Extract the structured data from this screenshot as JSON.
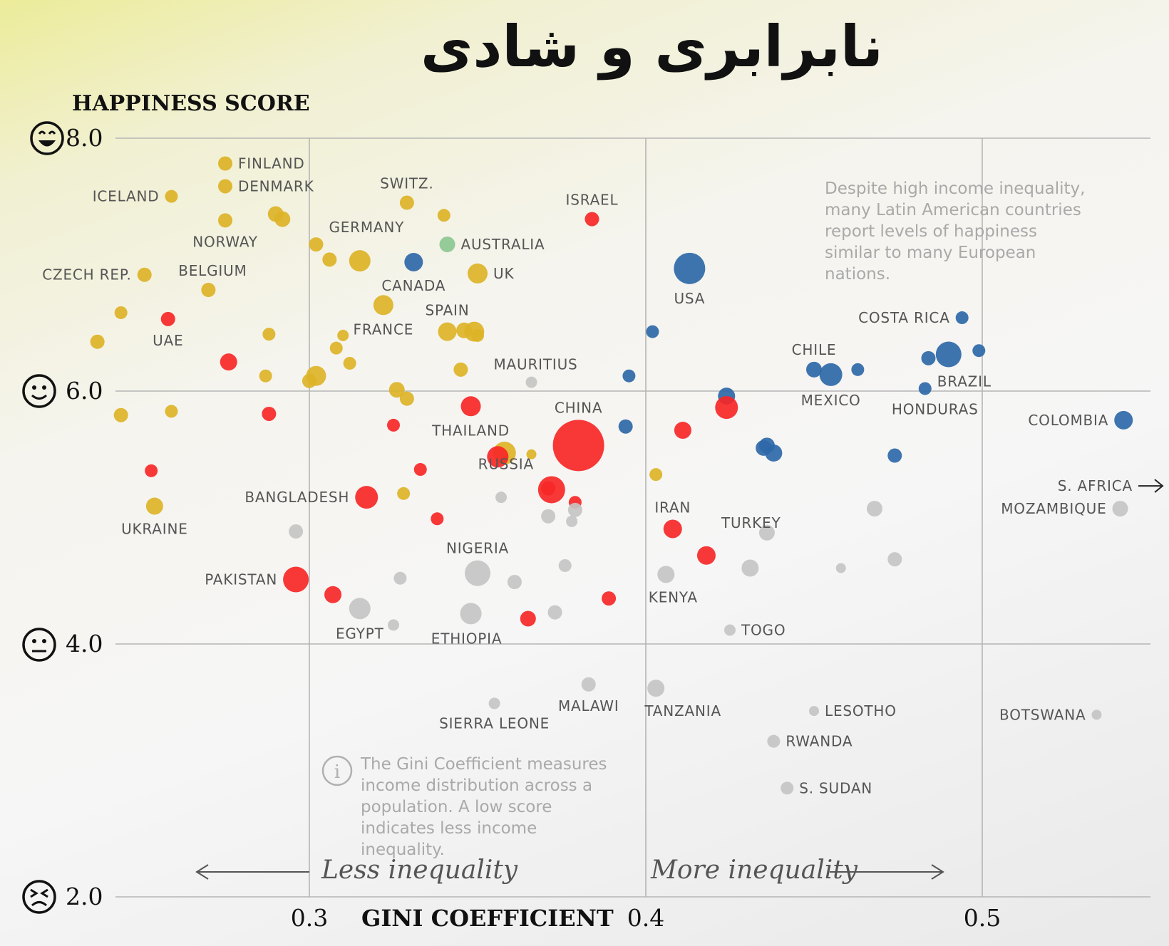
{
  "title": "نابرابری و شادی",
  "chart_data": {
    "type": "scatter",
    "title": "نابرابری و شادی",
    "ylabel": "HAPPINESS SCORE",
    "xlabel": "GINI COEFFICIENT",
    "xlim": [
      0.243,
      0.55
    ],
    "ylim": [
      2.0,
      8.0
    ],
    "x_ticks": [
      {
        "value": 0.3,
        "label": "0.3"
      },
      {
        "value": 0.4,
        "label": "0.4"
      },
      {
        "value": 0.5,
        "label": "0.5"
      }
    ],
    "y_ticks": [
      {
        "value": 8,
        "label": "8.0"
      },
      {
        "value": 6,
        "label": "6.0"
      },
      {
        "value": 4,
        "label": "4.0"
      },
      {
        "value": 2,
        "label": "2.0"
      }
    ],
    "grid": true,
    "direction_labels": {
      "less": "Less inequality",
      "more": "More inequality"
    },
    "annotations": {
      "latin_america": "Despite high income inequality, many Latin American countries report levels of happiness similar to many European nations.",
      "gini_info": "The Gini Coefficient measures income distribution across a population. A low score indicates less income inequality."
    },
    "colors": {
      "europe": "#dcb327",
      "asia": "#f62727",
      "americas": "#2e68a8",
      "africa": "#c4c4c4",
      "oceania": "#8cc890"
    },
    "points": [
      {
        "label": "FINLAND",
        "x": 0.275,
        "y": 7.8,
        "group": "europe",
        "size": 1
      },
      {
        "label": "DENMARK",
        "x": 0.275,
        "y": 7.62,
        "group": "europe",
        "size": 1
      },
      {
        "label": "ICELAND",
        "x": 0.259,
        "y": 7.54,
        "group": "europe",
        "size": 0.9
      },
      {
        "label": "SWITZ.",
        "x": 0.329,
        "y": 7.49,
        "group": "europe",
        "size": 1
      },
      {
        "label": "NORWAY",
        "x": 0.275,
        "y": 7.35,
        "group": "europe",
        "size": 1
      },
      {
        "label": "",
        "x": 0.29,
        "y": 7.4,
        "group": "europe",
        "size": 1.1
      },
      {
        "label": "",
        "x": 0.292,
        "y": 7.36,
        "group": "europe",
        "size": 1.1
      },
      {
        "label": "",
        "x": 0.34,
        "y": 7.39,
        "group": "europe",
        "size": 0.9
      },
      {
        "label": "ISRAEL",
        "x": 0.384,
        "y": 7.36,
        "group": "asia",
        "size": 1
      },
      {
        "label": "GERMANY",
        "x": 0.302,
        "y": 7.16,
        "group": "europe",
        "size": 1
      },
      {
        "label": "",
        "x": 0.306,
        "y": 7.04,
        "group": "europe",
        "size": 1
      },
      {
        "label": "",
        "x": 0.315,
        "y": 7.03,
        "group": "europe",
        "size": 1.5
      },
      {
        "label": "AUSTRALIA",
        "x": 0.341,
        "y": 7.16,
        "group": "oceania",
        "size": 1.1
      },
      {
        "label": "CANADA",
        "x": 0.331,
        "y": 7.02,
        "group": "americas",
        "size": 1.3
      },
      {
        "label": "UK",
        "x": 0.35,
        "y": 6.93,
        "group": "europe",
        "size": 1.4
      },
      {
        "label": "CZECH REP.",
        "x": 0.251,
        "y": 6.92,
        "group": "europe",
        "size": 1
      },
      {
        "label": "BELGIUM",
        "x": 0.27,
        "y": 6.8,
        "group": "europe",
        "size": 1
      },
      {
        "label": "USA",
        "x": 0.413,
        "y": 6.97,
        "group": "americas",
        "size": 2.2
      },
      {
        "label": "FRANCE",
        "x": 0.322,
        "y": 6.68,
        "group": "europe",
        "size": 1.4
      },
      {
        "label": "",
        "x": 0.244,
        "y": 6.62,
        "group": "europe",
        "size": 0.9
      },
      {
        "label": "UAE",
        "x": 0.258,
        "y": 6.57,
        "group": "asia",
        "size": 1
      },
      {
        "label": "SPAIN",
        "x": 0.341,
        "y": 6.47,
        "group": "europe",
        "size": 1.3
      },
      {
        "label": "",
        "x": 0.346,
        "y": 6.48,
        "group": "europe",
        "size": 1.1
      },
      {
        "label": "",
        "x": 0.349,
        "y": 6.47,
        "group": "europe",
        "size": 1.4
      },
      {
        "label": "",
        "x": 0.35,
        "y": 6.44,
        "group": "europe",
        "size": 0.9
      },
      {
        "label": "",
        "x": 0.288,
        "y": 6.45,
        "group": "europe",
        "size": 0.9
      },
      {
        "label": "",
        "x": 0.31,
        "y": 6.44,
        "group": "europe",
        "size": 0.8
      },
      {
        "label": "",
        "x": 0.237,
        "y": 6.39,
        "group": "europe",
        "size": 1
      },
      {
        "label": "",
        "x": 0.308,
        "y": 6.34,
        "group": "europe",
        "size": 0.9
      },
      {
        "label": "",
        "x": 0.312,
        "y": 6.22,
        "group": "europe",
        "size": 0.9
      },
      {
        "label": "",
        "x": 0.276,
        "y": 6.23,
        "group": "asia",
        "size": 1.2
      },
      {
        "label": "",
        "x": 0.287,
        "y": 6.12,
        "group": "europe",
        "size": 0.9
      },
      {
        "label": "",
        "x": 0.302,
        "y": 6.12,
        "group": "europe",
        "size": 1.4
      },
      {
        "label": "",
        "x": 0.3,
        "y": 6.08,
        "group": "europe",
        "size": 1
      },
      {
        "label": "",
        "x": 0.345,
        "y": 6.17,
        "group": "europe",
        "size": 1
      },
      {
        "label": "MAURITIUS",
        "x": 0.366,
        "y": 6.07,
        "group": "africa",
        "size": 0.8
      },
      {
        "label": "",
        "x": 0.402,
        "y": 6.47,
        "group": "americas",
        "size": 0.9
      },
      {
        "label": "",
        "x": 0.395,
        "y": 6.12,
        "group": "americas",
        "size": 0.9
      },
      {
        "label": "",
        "x": 0.326,
        "y": 6.01,
        "group": "europe",
        "size": 1.1
      },
      {
        "label": "",
        "x": 0.329,
        "y": 5.94,
        "group": "europe",
        "size": 1
      },
      {
        "label": "",
        "x": 0.244,
        "y": 5.81,
        "group": "europe",
        "size": 1
      },
      {
        "label": "",
        "x": 0.259,
        "y": 5.84,
        "group": "europe",
        "size": 0.9
      },
      {
        "label": "",
        "x": 0.288,
        "y": 5.82,
        "group": "asia",
        "size": 1
      },
      {
        "label": "",
        "x": 0.325,
        "y": 5.73,
        "group": "asia",
        "size": 0.9
      },
      {
        "label": "THAILAND",
        "x": 0.348,
        "y": 5.88,
        "group": "asia",
        "size": 1.4
      },
      {
        "label": "CHINA",
        "x": 0.38,
        "y": 5.57,
        "group": "asia",
        "size": 3.6
      },
      {
        "label": "",
        "x": 0.394,
        "y": 5.72,
        "group": "americas",
        "size": 1
      },
      {
        "label": "",
        "x": 0.411,
        "y": 5.69,
        "group": "asia",
        "size": 1.2
      },
      {
        "label": "",
        "x": 0.424,
        "y": 5.96,
        "group": "americas",
        "size": 1.2
      },
      {
        "label": "",
        "x": 0.424,
        "y": 5.87,
        "group": "asia",
        "size": 1.6
      },
      {
        "label": "",
        "x": 0.435,
        "y": 5.55,
        "group": "americas",
        "size": 1.1
      },
      {
        "label": "",
        "x": 0.436,
        "y": 5.57,
        "group": "americas",
        "size": 1.1
      },
      {
        "label": "",
        "x": 0.438,
        "y": 5.51,
        "group": "americas",
        "size": 1.2
      },
      {
        "label": "CHILE",
        "x": 0.45,
        "y": 6.17,
        "group": "americas",
        "size": 1.1
      },
      {
        "label": "MEXICO",
        "x": 0.455,
        "y": 6.13,
        "group": "americas",
        "size": 1.6
      },
      {
        "label": "",
        "x": 0.463,
        "y": 6.17,
        "group": "americas",
        "size": 0.9
      },
      {
        "label": "COSTA RICA",
        "x": 0.494,
        "y": 6.58,
        "group": "americas",
        "size": 0.9
      },
      {
        "label": "",
        "x": 0.484,
        "y": 6.26,
        "group": "americas",
        "size": 1
      },
      {
        "label": "BRAZIL",
        "x": 0.49,
        "y": 6.29,
        "group": "americas",
        "size": 1.8
      },
      {
        "label": "",
        "x": 0.499,
        "y": 6.32,
        "group": "americas",
        "size": 0.9
      },
      {
        "label": "HONDURAS",
        "x": 0.483,
        "y": 6.02,
        "group": "americas",
        "size": 0.9
      },
      {
        "label": "COLOMBIA",
        "x": 0.542,
        "y": 5.77,
        "group": "americas",
        "size": 1.3
      },
      {
        "label": "",
        "x": 0.474,
        "y": 5.49,
        "group": "americas",
        "size": 1
      },
      {
        "label": "",
        "x": 0.358,
        "y": 5.51,
        "group": "europe",
        "size": 1.6
      },
      {
        "label": "",
        "x": 0.356,
        "y": 5.48,
        "group": "asia",
        "size": 1.5
      },
      {
        "label": "",
        "x": 0.366,
        "y": 5.5,
        "group": "europe",
        "size": 0.7
      },
      {
        "label": "",
        "x": 0.333,
        "y": 5.38,
        "group": "asia",
        "size": 0.9
      },
      {
        "label": "RUSSIA",
        "x": 0.372,
        "y": 5.22,
        "group": "asia",
        "size": 1.9
      },
      {
        "label": "",
        "x": 0.371,
        "y": 5.23,
        "group": "asia",
        "size": 1
      },
      {
        "label": "",
        "x": 0.379,
        "y": 5.12,
        "group": "asia",
        "size": 0.9
      },
      {
        "label": "",
        "x": 0.403,
        "y": 5.34,
        "group": "europe",
        "size": 0.9
      },
      {
        "label": "BANGLADESH",
        "x": 0.317,
        "y": 5.16,
        "group": "asia",
        "size": 1.6
      },
      {
        "label": "",
        "x": 0.328,
        "y": 5.19,
        "group": "europe",
        "size": 0.9
      },
      {
        "label": "",
        "x": 0.357,
        "y": 5.16,
        "group": "africa",
        "size": 0.8
      },
      {
        "label": "",
        "x": 0.253,
        "y": 5.37,
        "group": "asia",
        "size": 0.9
      },
      {
        "label": "UKRAINE",
        "x": 0.254,
        "y": 5.09,
        "group": "europe",
        "size": 1.2
      },
      {
        "label": "",
        "x": 0.296,
        "y": 4.89,
        "group": "africa",
        "size": 1
      },
      {
        "label": "",
        "x": 0.338,
        "y": 4.99,
        "group": "asia",
        "size": 0.9
      },
      {
        "label": "",
        "x": 0.371,
        "y": 5.01,
        "group": "africa",
        "size": 1
      },
      {
        "label": "",
        "x": 0.379,
        "y": 5.06,
        "group": "africa",
        "size": 1
      },
      {
        "label": "",
        "x": 0.378,
        "y": 4.97,
        "group": "africa",
        "size": 0.8
      },
      {
        "label": "IRAN",
        "x": 0.408,
        "y": 4.91,
        "group": "asia",
        "size": 1.3
      },
      {
        "label": "TURKEY",
        "x": 0.418,
        "y": 4.7,
        "group": "asia",
        "size": 1.3
      },
      {
        "label": "",
        "x": 0.436,
        "y": 4.88,
        "group": "africa",
        "size": 1.1
      },
      {
        "label": "",
        "x": 0.468,
        "y": 5.07,
        "group": "africa",
        "size": 1.1
      },
      {
        "label": "MOZAMBIQUE",
        "x": 0.541,
        "y": 5.07,
        "group": "africa",
        "size": 1.1
      },
      {
        "label": "NIGERIA",
        "x": 0.35,
        "y": 4.56,
        "group": "africa",
        "size": 1.8
      },
      {
        "label": "",
        "x": 0.361,
        "y": 4.49,
        "group": "africa",
        "size": 1
      },
      {
        "label": "",
        "x": 0.376,
        "y": 4.62,
        "group": "africa",
        "size": 0.9
      },
      {
        "label": "",
        "x": 0.327,
        "y": 4.52,
        "group": "africa",
        "size": 0.9
      },
      {
        "label": "PAKISTAN",
        "x": 0.296,
        "y": 4.51,
        "group": "asia",
        "size": 1.8
      },
      {
        "label": "",
        "x": 0.307,
        "y": 4.39,
        "group": "asia",
        "size": 1.2
      },
      {
        "label": "EGYPT",
        "x": 0.315,
        "y": 4.28,
        "group": "africa",
        "size": 1.5
      },
      {
        "label": "",
        "x": 0.325,
        "y": 4.15,
        "group": "africa",
        "size": 0.8
      },
      {
        "label": "ETHIOPIA",
        "x": 0.348,
        "y": 4.24,
        "group": "africa",
        "size": 1.5
      },
      {
        "label": "",
        "x": 0.365,
        "y": 4.2,
        "group": "asia",
        "size": 1.1
      },
      {
        "label": "",
        "x": 0.373,
        "y": 4.25,
        "group": "africa",
        "size": 1
      },
      {
        "label": "",
        "x": 0.389,
        "y": 4.36,
        "group": "asia",
        "size": 1
      },
      {
        "label": "KENYA",
        "x": 0.406,
        "y": 4.55,
        "group": "africa",
        "size": 1.2
      },
      {
        "label": "",
        "x": 0.431,
        "y": 4.6,
        "group": "africa",
        "size": 1.2
      },
      {
        "label": "",
        "x": 0.458,
        "y": 4.6,
        "group": "africa",
        "size": 0.7
      },
      {
        "label": "",
        "x": 0.474,
        "y": 4.67,
        "group": "africa",
        "size": 1
      },
      {
        "label": "TOGO",
        "x": 0.425,
        "y": 4.11,
        "group": "africa",
        "size": 0.8
      },
      {
        "label": "MALAWI",
        "x": 0.383,
        "y": 3.68,
        "group": "africa",
        "size": 1
      },
      {
        "label": "SIERRA LEONE",
        "x": 0.355,
        "y": 3.53,
        "group": "africa",
        "size": 0.8
      },
      {
        "label": "TANZANIA",
        "x": 0.403,
        "y": 3.65,
        "group": "africa",
        "size": 1.2
      },
      {
        "label": "LESOTHO",
        "x": 0.45,
        "y": 3.47,
        "group": "africa",
        "size": 0.7
      },
      {
        "label": "BOTSWANA",
        "x": 0.534,
        "y": 3.44,
        "group": "africa",
        "size": 0.7
      },
      {
        "label": "RWANDA",
        "x": 0.438,
        "y": 3.23,
        "group": "africa",
        "size": 0.9
      },
      {
        "label": "S. SUDAN",
        "x": 0.442,
        "y": 2.86,
        "group": "africa",
        "size": 0.9
      }
    ],
    "offscale": [
      {
        "label": "S. AFRICA",
        "direction": "right",
        "y": 5.25
      }
    ]
  }
}
